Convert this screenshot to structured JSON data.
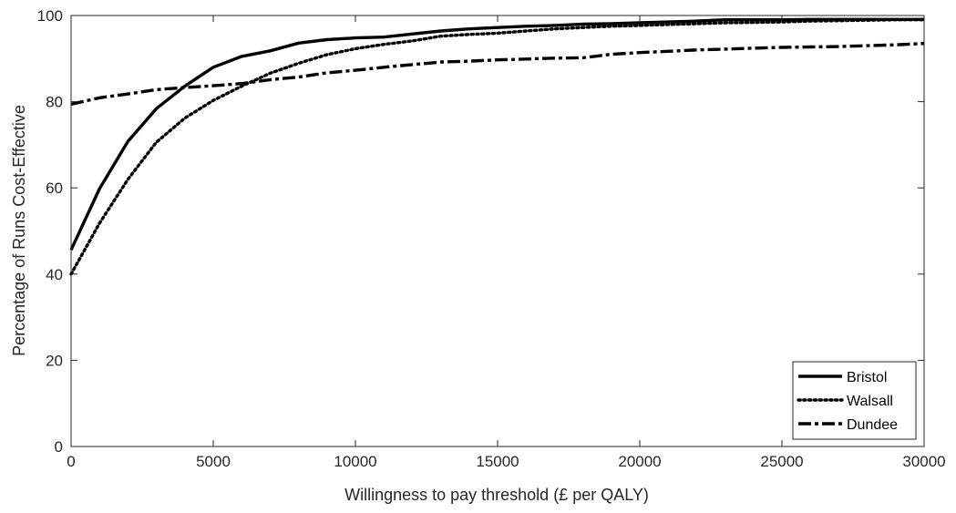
{
  "chart_data": {
    "type": "line",
    "xlabel": "Willingness to pay threshold (£ per QALY)",
    "ylabel": "Percentage of Runs Cost-Effective",
    "xlim": [
      0,
      30000
    ],
    "ylim": [
      0,
      100
    ],
    "x_ticks": [
      0,
      5000,
      10000,
      15000,
      20000,
      25000,
      30000
    ],
    "y_ticks": [
      0,
      20,
      40,
      60,
      80,
      100
    ],
    "grid": false,
    "legend_position": "bottom-right",
    "line_color": "#000000",
    "series": [
      {
        "name": "Bristol",
        "style": "solid",
        "x": [
          0,
          1000,
          2000,
          3000,
          4000,
          5000,
          6000,
          7000,
          8000,
          9000,
          10000,
          11000,
          12000,
          13000,
          14000,
          15000,
          16000,
          17000,
          18000,
          19000,
          20000,
          21000,
          22000,
          23000,
          24000,
          25000,
          26000,
          27000,
          28000,
          29000,
          30000
        ],
        "values": [
          45.6,
          59.8,
          70.8,
          78.4,
          83.6,
          88.0,
          90.5,
          91.8,
          93.6,
          94.4,
          94.8,
          95.0,
          95.7,
          96.4,
          96.9,
          97.2,
          97.5,
          97.7,
          98.0,
          98.1,
          98.3,
          98.5,
          98.7,
          99.0,
          99.0,
          99.0,
          99.1,
          99.1,
          99.1,
          99.1,
          99.1
        ]
      },
      {
        "name": "Walsall",
        "style": "dotted",
        "x": [
          0,
          1000,
          2000,
          3000,
          4000,
          5000,
          6000,
          7000,
          8000,
          9000,
          10000,
          11000,
          12000,
          13000,
          14000,
          15000,
          16000,
          17000,
          18000,
          19000,
          20000,
          21000,
          22000,
          23000,
          24000,
          25000,
          26000,
          27000,
          28000,
          29000,
          30000
        ],
        "values": [
          40.0,
          51.8,
          62.0,
          70.6,
          76.2,
          80.3,
          83.6,
          86.6,
          88.9,
          90.9,
          92.3,
          93.3,
          94.1,
          95.2,
          95.6,
          95.9,
          96.4,
          96.9,
          97.2,
          97.5,
          97.7,
          97.9,
          98.1,
          98.3,
          98.4,
          98.5,
          98.7,
          98.8,
          98.9,
          99.0,
          99.0
        ]
      },
      {
        "name": "Dundee",
        "style": "dash-dot",
        "x": [
          0,
          1000,
          2000,
          3000,
          4000,
          5000,
          6000,
          7000,
          8000,
          9000,
          10000,
          11000,
          12000,
          13000,
          14000,
          15000,
          16000,
          17000,
          18000,
          19000,
          20000,
          21000,
          22000,
          23000,
          24000,
          25000,
          26000,
          27000,
          28000,
          29000,
          30000
        ],
        "values": [
          79.4,
          80.9,
          81.8,
          82.8,
          83.3,
          83.7,
          84.2,
          85.1,
          85.7,
          86.7,
          87.3,
          88.0,
          88.6,
          89.2,
          89.4,
          89.7,
          89.9,
          90.1,
          90.2,
          91.0,
          91.4,
          91.7,
          92.0,
          92.2,
          92.4,
          92.6,
          92.7,
          92.8,
          93.0,
          93.2,
          93.5
        ]
      }
    ]
  }
}
